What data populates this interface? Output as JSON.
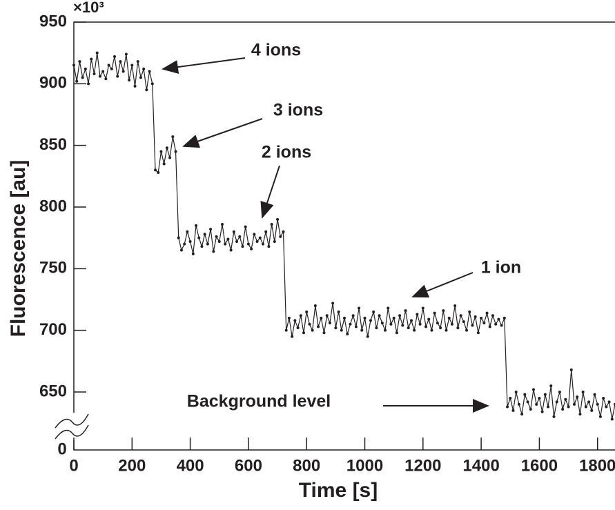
{
  "chart_data": {
    "type": "line",
    "x_label": "Time [s]",
    "y_label": "Fluorescence [au]",
    "y_multiplier": "×10³",
    "y_break_label": "0",
    "xlim": [
      0,
      1860
    ],
    "ylim": [
      603,
      950
    ],
    "xticks": [
      0,
      200,
      400,
      600,
      800,
      1000,
      1200,
      1400,
      1600,
      1800
    ],
    "yticks": [
      650,
      700,
      750,
      800,
      850,
      900,
      950
    ],
    "annotations": [
      "4 ions",
      "3 ions",
      "2 ions",
      "1 ion",
      "Background level"
    ],
    "series": [
      {
        "color": "#231f20",
        "x": [
          0,
          10,
          20,
          30,
          40,
          50,
          60,
          70,
          80,
          90,
          100,
          110,
          120,
          130,
          140,
          150,
          160,
          170,
          180,
          190,
          200,
          210,
          220,
          230,
          240,
          250,
          260,
          270,
          280,
          290,
          300,
          310,
          320,
          330,
          340,
          350,
          360,
          370,
          380,
          390,
          400,
          410,
          420,
          430,
          440,
          450,
          460,
          470,
          480,
          490,
          500,
          510,
          520,
          530,
          540,
          550,
          560,
          570,
          580,
          590,
          600,
          610,
          620,
          630,
          640,
          650,
          660,
          670,
          680,
          690,
          700,
          710,
          720,
          730,
          740,
          750,
          760,
          770,
          780,
          790,
          800,
          810,
          820,
          830,
          840,
          850,
          860,
          870,
          880,
          890,
          900,
          910,
          920,
          930,
          940,
          950,
          960,
          970,
          980,
          990,
          1000,
          1010,
          1020,
          1030,
          1040,
          1050,
          1060,
          1070,
          1080,
          1090,
          1100,
          1110,
          1120,
          1130,
          1140,
          1150,
          1160,
          1170,
          1180,
          1190,
          1200,
          1210,
          1220,
          1230,
          1240,
          1250,
          1260,
          1270,
          1280,
          1290,
          1300,
          1310,
          1320,
          1330,
          1340,
          1350,
          1360,
          1370,
          1380,
          1390,
          1400,
          1410,
          1420,
          1430,
          1440,
          1450,
          1460,
          1470,
          1480,
          1490,
          1500,
          1510,
          1520,
          1530,
          1540,
          1550,
          1560,
          1570,
          1580,
          1590,
          1600,
          1610,
          1620,
          1630,
          1640,
          1650,
          1660,
          1670,
          1680,
          1690,
          1700,
          1710,
          1720,
          1730,
          1740,
          1750,
          1760,
          1770,
          1780,
          1790,
          1800,
          1810,
          1820,
          1830,
          1840,
          1850,
          1860
        ],
        "values": [
          915,
          902,
          918,
          905,
          912,
          900,
          920,
          908,
          925,
          906,
          910,
          904,
          915,
          912,
          922,
          906,
          918,
          910,
          924,
          903,
          915,
          898,
          918,
          905,
          912,
          895,
          910,
          900,
          830,
          828,
          845,
          835,
          848,
          840,
          857,
          845,
          775,
          765,
          770,
          780,
          772,
          762,
          785,
          775,
          768,
          778,
          770,
          782,
          764,
          776,
          772,
          786,
          770,
          774,
          765,
          780,
          772,
          776,
          768,
          784,
          770,
          766,
          778,
          772,
          775,
          770,
          780,
          768,
          786,
          772,
          790,
          776,
          780,
          700,
          710,
          695,
          708,
          702,
          712,
          698,
          715,
          705,
          700,
          720,
          703,
          710,
          698,
          712,
          706,
          722,
          702,
          715,
          700,
          710,
          697,
          705,
          712,
          703,
          718,
          700,
          710,
          695,
          708,
          715,
          702,
          712,
          706,
          700,
          718,
          705,
          710,
          698,
          712,
          704,
          716,
          702,
          708,
          700,
          713,
          705,
          718,
          703,
          709,
          700,
          714,
          706,
          702,
          716,
          700,
          710,
          705,
          720,
          702,
          712,
          707,
          700,
          715,
          704,
          711,
          698,
          710,
          706,
          714,
          703,
          712,
          705,
          709,
          704,
          710,
          638,
          645,
          635,
          650,
          640,
          632,
          648,
          642,
          636,
          652,
          640,
          645,
          634,
          648,
          638,
          655,
          630,
          642,
          650,
          636,
          644,
          638,
          668,
          640,
          646,
          632,
          650,
          638,
          642,
          635,
          648,
          640,
          630,
          645,
          638,
          642,
          628,
          640
        ]
      }
    ]
  }
}
